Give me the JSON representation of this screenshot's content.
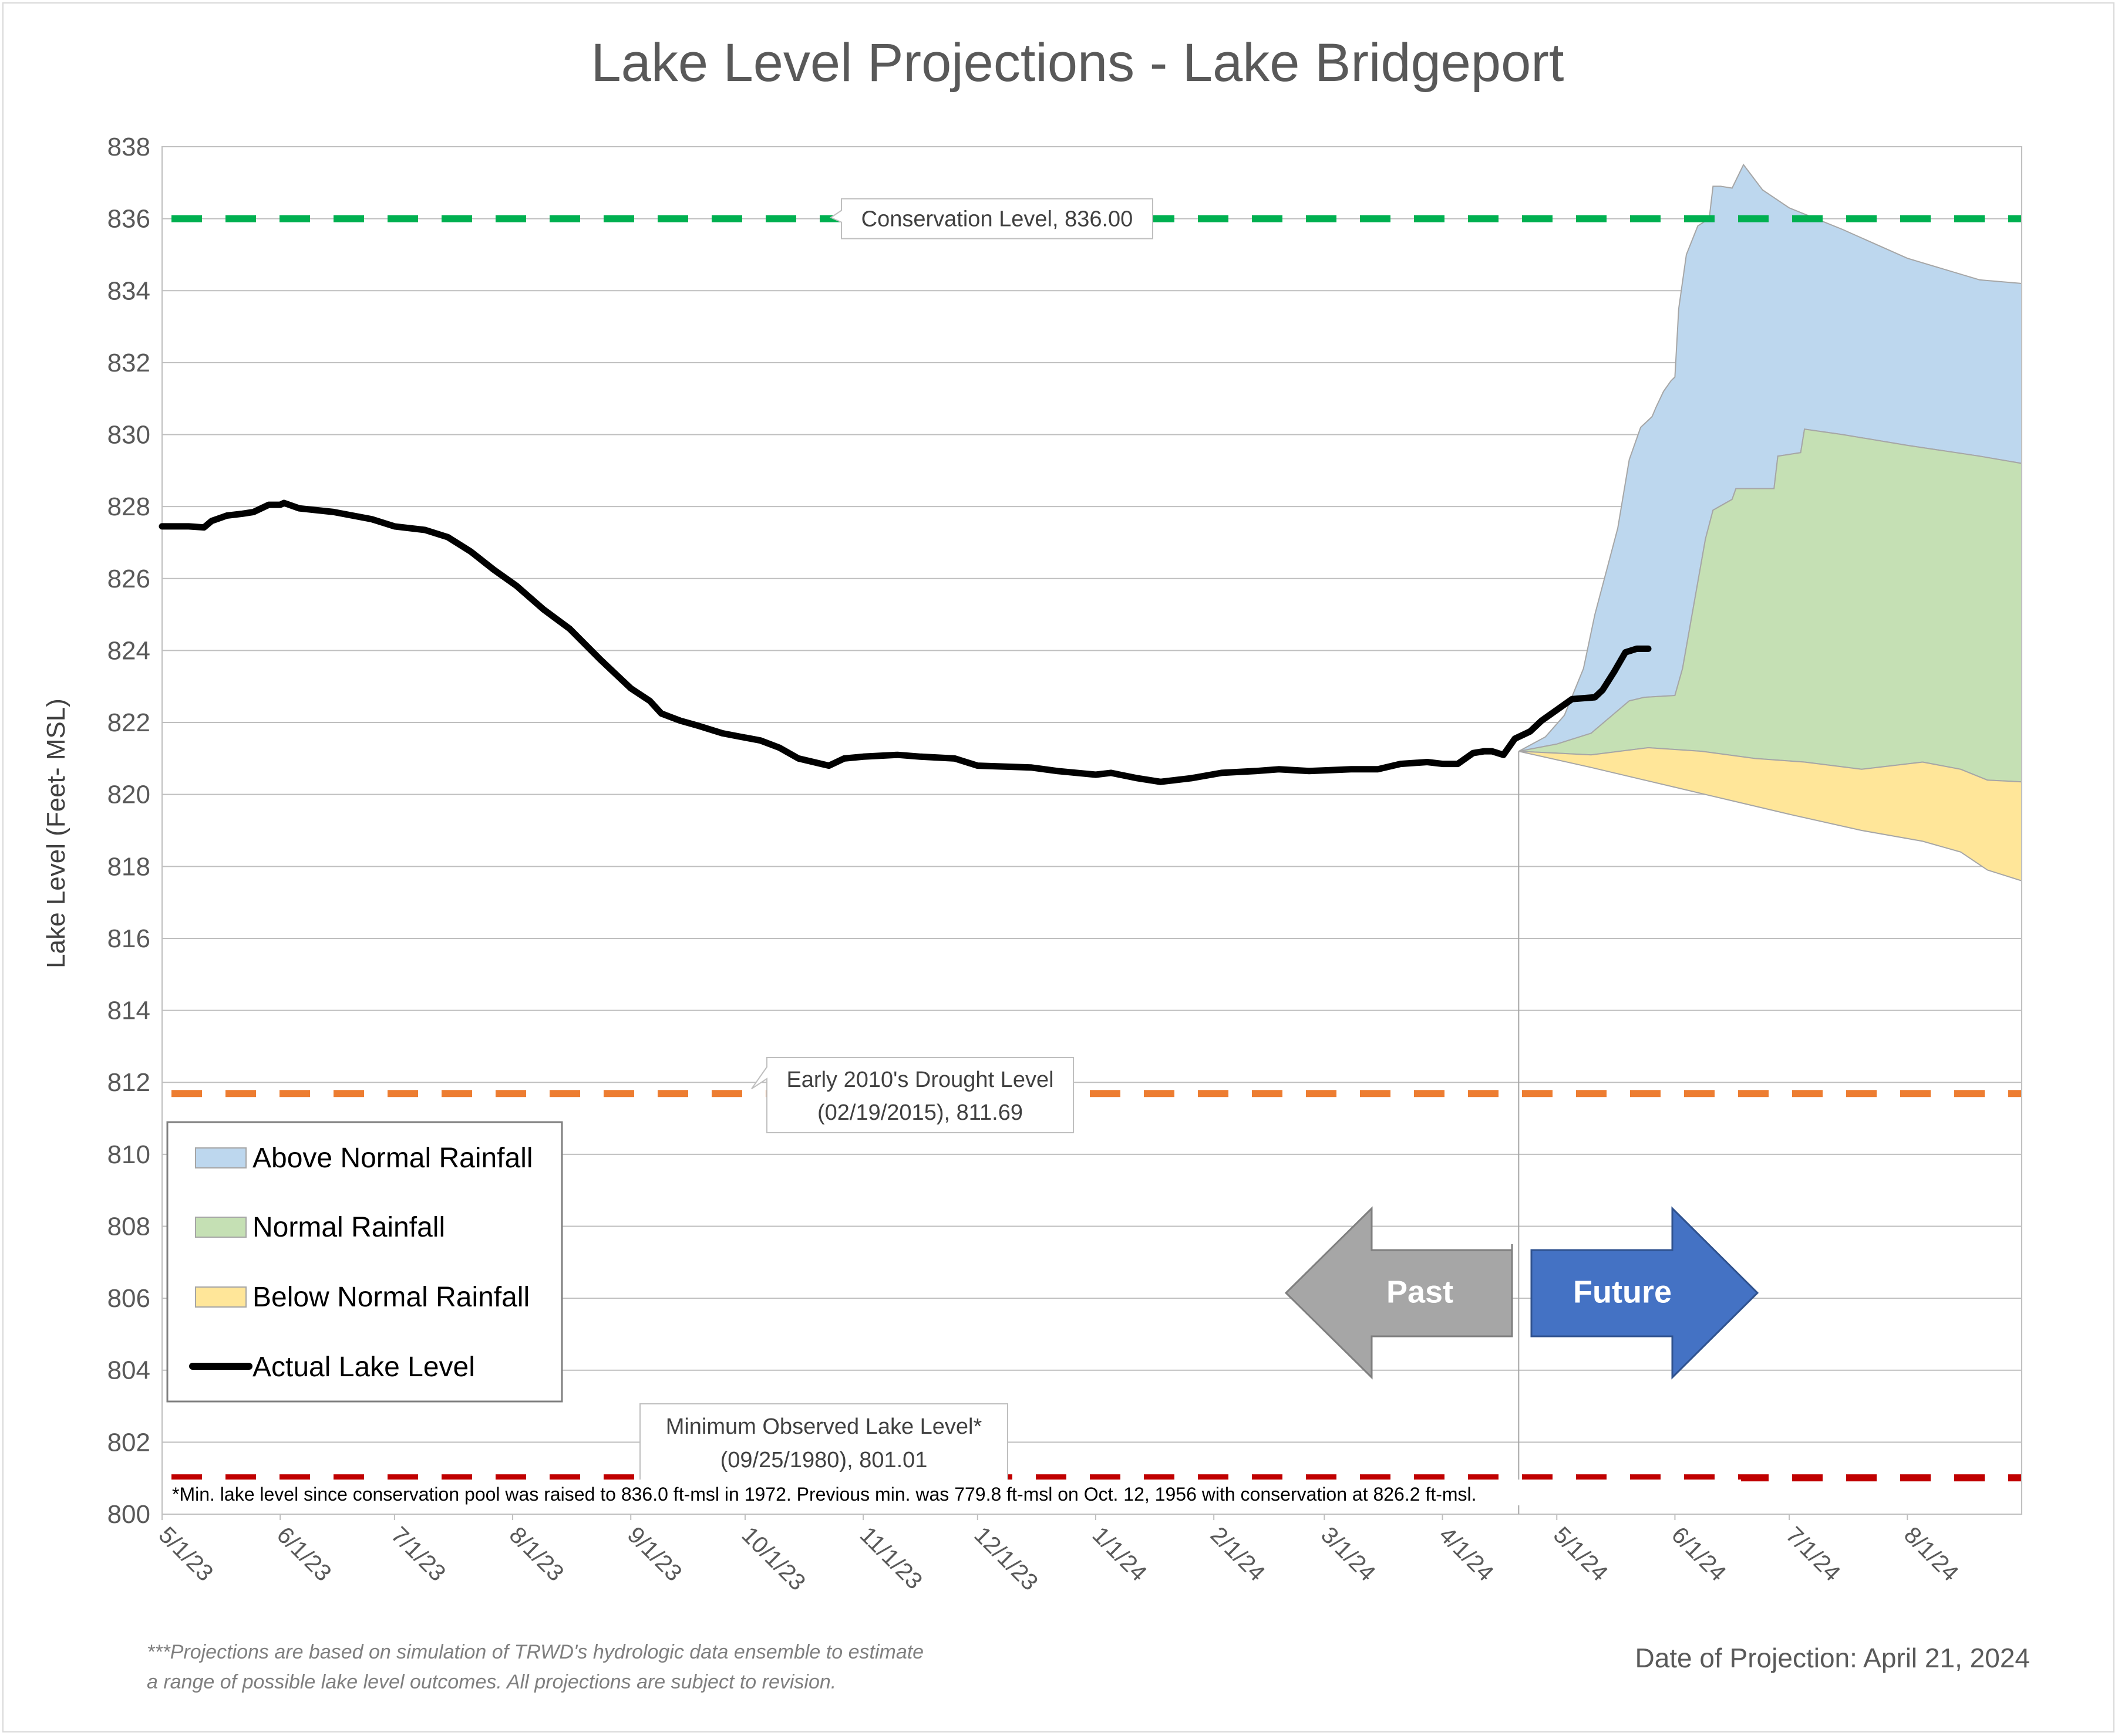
{
  "chart_data": {
    "type": "area",
    "title": "Lake Level Projections - Lake Bridgeport",
    "ylabel": "Lake Level (Feet- MSL)",
    "ylim": [
      800,
      838
    ],
    "yticks": [
      800,
      802,
      804,
      806,
      808,
      810,
      812,
      814,
      816,
      818,
      820,
      822,
      824,
      826,
      828,
      830,
      832,
      834,
      836,
      838
    ],
    "xlim": [
      "2023-05-01",
      "2024-08-31"
    ],
    "xticks": [
      {
        "date": "2023-05-01",
        "label": "5/1/23"
      },
      {
        "date": "2023-06-01",
        "label": "6/1/23"
      },
      {
        "date": "2023-07-01",
        "label": "7/1/23"
      },
      {
        "date": "2023-08-01",
        "label": "8/1/23"
      },
      {
        "date": "2023-09-01",
        "label": "9/1/23"
      },
      {
        "date": "2023-10-01",
        "label": "10/1/23"
      },
      {
        "date": "2023-11-01",
        "label": "11/1/23"
      },
      {
        "date": "2023-12-01",
        "label": "12/1/23"
      },
      {
        "date": "2024-01-01",
        "label": "1/1/24"
      },
      {
        "date": "2024-02-01",
        "label": "2/1/24"
      },
      {
        "date": "2024-03-01",
        "label": "3/1/24"
      },
      {
        "date": "2024-04-01",
        "label": "4/1/24"
      },
      {
        "date": "2024-05-01",
        "label": "5/1/24"
      },
      {
        "date": "2024-06-01",
        "label": "6/1/24"
      },
      {
        "date": "2024-07-01",
        "label": "7/1/24"
      },
      {
        "date": "2024-08-01",
        "label": "8/1/24"
      }
    ],
    "grid": true,
    "legend_position": "left",
    "projection_date": "2024-04-21",
    "series": [
      {
        "name": "Actual Lake Level",
        "kind": "line",
        "color": "#000000",
        "points": [
          [
            "2023-05-01",
            827.45
          ],
          [
            "2023-05-08",
            827.45
          ],
          [
            "2023-05-12",
            827.42
          ],
          [
            "2023-05-14",
            827.6
          ],
          [
            "2023-05-18",
            827.75
          ],
          [
            "2023-05-22",
            827.8
          ],
          [
            "2023-05-25",
            827.85
          ],
          [
            "2023-05-29",
            828.05
          ],
          [
            "2023-06-01",
            828.05
          ],
          [
            "2023-06-02",
            828.1
          ],
          [
            "2023-06-06",
            827.95
          ],
          [
            "2023-06-15",
            827.85
          ],
          [
            "2023-06-25",
            827.65
          ],
          [
            "2023-07-01",
            827.45
          ],
          [
            "2023-07-09",
            827.35
          ],
          [
            "2023-07-15",
            827.15
          ],
          [
            "2023-07-21",
            826.75
          ],
          [
            "2023-07-27",
            826.25
          ],
          [
            "2023-08-02",
            825.8
          ],
          [
            "2023-08-09",
            825.15
          ],
          [
            "2023-08-16",
            824.6
          ],
          [
            "2023-08-24",
            823.75
          ],
          [
            "2023-09-01",
            822.95
          ],
          [
            "2023-09-06",
            822.6
          ],
          [
            "2023-09-09",
            822.25
          ],
          [
            "2023-09-14",
            822.05
          ],
          [
            "2023-09-19",
            821.9
          ],
          [
            "2023-09-25",
            821.7
          ],
          [
            "2023-09-30",
            821.6
          ],
          [
            "2023-10-05",
            821.5
          ],
          [
            "2023-10-10",
            821.3
          ],
          [
            "2023-10-15",
            821.0
          ],
          [
            "2023-10-21",
            820.85
          ],
          [
            "2023-10-23",
            820.8
          ],
          [
            "2023-10-27",
            821.0
          ],
          [
            "2023-11-01",
            821.05
          ],
          [
            "2023-11-10",
            821.1
          ],
          [
            "2023-11-16",
            821.05
          ],
          [
            "2023-11-25",
            821.0
          ],
          [
            "2023-12-01",
            820.8
          ],
          [
            "2023-12-15",
            820.75
          ],
          [
            "2023-12-22",
            820.65
          ],
          [
            "2024-01-01",
            820.55
          ],
          [
            "2024-01-05",
            820.6
          ],
          [
            "2024-01-12",
            820.45
          ],
          [
            "2024-01-18",
            820.35
          ],
          [
            "2024-01-26",
            820.45
          ],
          [
            "2024-02-03",
            820.6
          ],
          [
            "2024-02-12",
            820.65
          ],
          [
            "2024-02-18",
            820.7
          ],
          [
            "2024-02-26",
            820.65
          ],
          [
            "2024-03-08",
            820.7
          ],
          [
            "2024-03-15",
            820.7
          ],
          [
            "2024-03-21",
            820.85
          ],
          [
            "2024-03-28",
            820.9
          ],
          [
            "2024-04-01",
            820.85
          ],
          [
            "2024-04-05",
            820.85
          ],
          [
            "2024-04-09",
            821.15
          ],
          [
            "2024-04-12",
            821.2
          ],
          [
            "2024-04-14",
            821.2
          ],
          [
            "2024-04-17",
            821.1
          ],
          [
            "2024-04-20",
            821.55
          ],
          [
            "2024-04-24",
            821.75
          ],
          [
            "2024-04-27",
            822.05
          ],
          [
            "2024-05-01",
            822.35
          ],
          [
            "2024-05-05",
            822.65
          ],
          [
            "2024-05-11",
            822.7
          ],
          [
            "2024-05-13",
            822.9
          ],
          [
            "2024-05-16",
            823.4
          ],
          [
            "2024-05-19",
            823.95
          ],
          [
            "2024-05-22",
            824.05
          ],
          [
            "2024-05-25",
            824.05
          ]
        ]
      },
      {
        "name": "Above Normal Rainfall",
        "kind": "band",
        "color": "#bdd7ee",
        "upper": [
          [
            "2024-04-21",
            821.2
          ],
          [
            "2024-04-28",
            821.6
          ],
          [
            "2024-05-03",
            822.2
          ],
          [
            "2024-05-08",
            823.5
          ],
          [
            "2024-05-11",
            825.0
          ],
          [
            "2024-05-14",
            826.2
          ],
          [
            "2024-05-17",
            827.4
          ],
          [
            "2024-05-20",
            829.3
          ],
          [
            "2024-05-23",
            830.2
          ],
          [
            "2024-05-26",
            830.5
          ],
          [
            "2024-05-27",
            830.75
          ],
          [
            "2024-05-29",
            831.2
          ],
          [
            "2024-05-31",
            831.5
          ],
          [
            "2024-06-01",
            831.6
          ],
          [
            "2024-06-02",
            833.5
          ],
          [
            "2024-06-04",
            835.0
          ],
          [
            "2024-06-07",
            835.8
          ],
          [
            "2024-06-10",
            836.0
          ],
          [
            "2024-06-11",
            836.9
          ],
          [
            "2024-06-13",
            836.9
          ],
          [
            "2024-06-16",
            836.85
          ],
          [
            "2024-06-19",
            837.5
          ],
          [
            "2024-06-24",
            836.8
          ],
          [
            "2024-07-01",
            836.3
          ],
          [
            "2024-07-15",
            835.7
          ],
          [
            "2024-08-01",
            834.9
          ],
          [
            "2024-08-20",
            834.3
          ],
          [
            "2024-08-31",
            834.2
          ]
        ],
        "lower": [
          [
            "2024-04-21",
            821.2
          ],
          [
            "2024-05-01",
            821.4
          ],
          [
            "2024-05-10",
            821.7
          ],
          [
            "2024-05-20",
            822.6
          ],
          [
            "2024-05-24",
            822.7
          ],
          [
            "2024-06-01",
            822.75
          ],
          [
            "2024-06-03",
            823.5
          ],
          [
            "2024-06-06",
            825.3
          ],
          [
            "2024-06-09",
            827.1
          ],
          [
            "2024-06-11",
            827.9
          ],
          [
            "2024-06-16",
            828.2
          ],
          [
            "2024-06-17",
            828.5
          ],
          [
            "2024-06-27",
            828.5
          ],
          [
            "2024-06-28",
            829.4
          ],
          [
            "2024-07-04",
            829.5
          ],
          [
            "2024-07-05",
            830.15
          ],
          [
            "2024-07-15",
            830.0
          ],
          [
            "2024-08-01",
            829.7
          ],
          [
            "2024-08-20",
            829.4
          ],
          [
            "2024-08-31",
            829.2
          ]
        ]
      },
      {
        "name": "Normal Rainfall",
        "kind": "band",
        "color": "#c5e0b4",
        "upper": [
          [
            "2024-04-21",
            821.2
          ],
          [
            "2024-05-01",
            821.4
          ],
          [
            "2024-05-10",
            821.7
          ],
          [
            "2024-05-20",
            822.6
          ],
          [
            "2024-05-24",
            822.7
          ],
          [
            "2024-06-01",
            822.75
          ],
          [
            "2024-06-03",
            823.5
          ],
          [
            "2024-06-06",
            825.3
          ],
          [
            "2024-06-09",
            827.1
          ],
          [
            "2024-06-11",
            827.9
          ],
          [
            "2024-06-16",
            828.2
          ],
          [
            "2024-06-17",
            828.5
          ],
          [
            "2024-06-27",
            828.5
          ],
          [
            "2024-06-28",
            829.4
          ],
          [
            "2024-07-04",
            829.5
          ],
          [
            "2024-07-05",
            830.15
          ],
          [
            "2024-07-15",
            830.0
          ],
          [
            "2024-08-01",
            829.7
          ],
          [
            "2024-08-20",
            829.4
          ],
          [
            "2024-08-31",
            829.2
          ]
        ],
        "lower": [
          [
            "2024-04-21",
            821.2
          ],
          [
            "2024-05-10",
            821.1
          ],
          [
            "2024-05-25",
            821.3
          ],
          [
            "2024-06-08",
            821.2
          ],
          [
            "2024-06-22",
            821.0
          ],
          [
            "2024-07-05",
            820.9
          ],
          [
            "2024-07-20",
            820.7
          ],
          [
            "2024-08-05",
            820.9
          ],
          [
            "2024-08-15",
            820.7
          ],
          [
            "2024-08-22",
            820.4
          ],
          [
            "2024-08-31",
            820.35
          ]
        ]
      },
      {
        "name": "Below Normal Rainfall",
        "kind": "band",
        "color": "#ffe699",
        "upper": [
          [
            "2024-04-21",
            821.2
          ],
          [
            "2024-05-10",
            821.1
          ],
          [
            "2024-05-25",
            821.3
          ],
          [
            "2024-06-08",
            821.2
          ],
          [
            "2024-06-22",
            821.0
          ],
          [
            "2024-07-05",
            820.9
          ],
          [
            "2024-07-20",
            820.7
          ],
          [
            "2024-08-05",
            820.9
          ],
          [
            "2024-08-15",
            820.7
          ],
          [
            "2024-08-22",
            820.4
          ],
          [
            "2024-08-31",
            820.35
          ]
        ],
        "lower": [
          [
            "2024-04-21",
            821.2
          ],
          [
            "2024-05-10",
            820.75
          ],
          [
            "2024-06-01",
            820.2
          ],
          [
            "2024-06-15",
            819.85
          ],
          [
            "2024-07-01",
            819.45
          ],
          [
            "2024-07-20",
            819.0
          ],
          [
            "2024-08-05",
            818.7
          ],
          [
            "2024-08-15",
            818.4
          ],
          [
            "2024-08-22",
            817.9
          ],
          [
            "2024-08-31",
            817.6
          ]
        ]
      }
    ],
    "reference_lines": [
      {
        "name": "Conservation Level",
        "value": 836.0,
        "color": "#00b050",
        "label": "Conservation Level, 836.00"
      },
      {
        "name": "Early 2010's Drought Level",
        "value": 811.69,
        "color": "#ed7d31",
        "label_line1": "Early 2010's Drought Level",
        "label_line2": "(02/19/2015), 811.69"
      },
      {
        "name": "Minimum Observed Lake Level",
        "value": 801.01,
        "color": "#c00000",
        "label_line1": "Minimum Observed Lake Level*",
        "label_line2": "(09/25/1980), 801.01"
      }
    ]
  },
  "legend": {
    "items": [
      {
        "label": "Above Normal Rainfall",
        "color": "#bdd7ee",
        "kind": "swatch"
      },
      {
        "label": "Normal Rainfall",
        "color": "#c5e0b4",
        "kind": "swatch"
      },
      {
        "label": "Below Normal Rainfall",
        "color": "#ffe699",
        "kind": "swatch"
      },
      {
        "label": "Actual Lake Level",
        "color": "#000000",
        "kind": "line"
      }
    ]
  },
  "arrows": {
    "past_label": "Past",
    "past_color": "#a6a6a6",
    "future_label": "Future",
    "future_color": "#4472c4"
  },
  "notes": {
    "min_note": "*Min. lake level since conservation pool was raised to 836.0 ft-msl in 1972.  Previous min. was 779.8 ft-msl on Oct. 12, 1956 with conservation at 826.2 ft-msl.",
    "footnote_line1": "***Projections are based on simulation of TRWD's hydrologic data ensemble to estimate",
    "footnote_line2": "a range of possible lake level outcomes.  All projections are subject to revision.",
    "projection_date_text": "Date of Projection: April 21, 2024"
  }
}
